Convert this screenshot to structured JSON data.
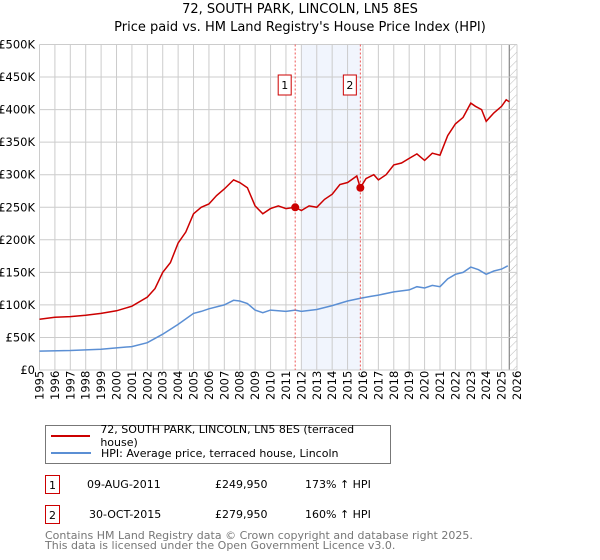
{
  "chart_data": {
    "type": "line",
    "title": "72, SOUTH PARK, LINCOLN, LN5 8ES",
    "subtitle": "Price paid vs. HM Land Registry's House Price Index (HPI)",
    "xlim": [
      1995,
      2026
    ],
    "ylim": [
      0,
      500000
    ],
    "x_ticks": [
      "1995",
      "1996",
      "1997",
      "1998",
      "1999",
      "2000",
      "2001",
      "2002",
      "2003",
      "2004",
      "2005",
      "2006",
      "2007",
      "2008",
      "2009",
      "2010",
      "2011",
      "2012",
      "2013",
      "2014",
      "2015",
      "2016",
      "2017",
      "2018",
      "2019",
      "2020",
      "2021",
      "2022",
      "2023",
      "2024",
      "2025",
      "2026"
    ],
    "y_ticks": [
      {
        "v": 0,
        "label": "£0"
      },
      {
        "v": 50000,
        "label": "£50K"
      },
      {
        "v": 100000,
        "label": "£100K"
      },
      {
        "v": 150000,
        "label": "£150K"
      },
      {
        "v": 200000,
        "label": "£200K"
      },
      {
        "v": 250000,
        "label": "£250K"
      },
      {
        "v": 300000,
        "label": "£300K"
      },
      {
        "v": 350000,
        "label": "£350K"
      },
      {
        "v": 400000,
        "label": "£400K"
      },
      {
        "v": 450000,
        "label": "£450K"
      },
      {
        "v": 500000,
        "label": "£500K"
      }
    ],
    "grid": true,
    "shaded_range": [
      2012.0,
      2015.83
    ],
    "forecast_hatch_from": 2025.5,
    "series": [
      {
        "name": "72, SOUTH PARK, LINCOLN, LN5 8ES (terraced house)",
        "color": "#cc0000",
        "x": [
          1995,
          1996,
          1997,
          1998,
          1999,
          2000,
          2001,
          2002,
          2002.5,
          2003,
          2003.5,
          2004,
          2004.5,
          2005,
          2005.5,
          2006,
          2006.5,
          2007,
          2007.6,
          2008,
          2008.5,
          2009,
          2009.5,
          2010,
          2010.5,
          2011,
          2011.6,
          2012,
          2012.5,
          2013,
          2013.5,
          2014,
          2014.5,
          2015,
          2015.6,
          2015.83,
          2016.2,
          2016.7,
          2017,
          2017.5,
          2018,
          2018.5,
          2019,
          2019.5,
          2020,
          2020.5,
          2021,
          2021.5,
          2022,
          2022.5,
          2023,
          2023.3,
          2023.7,
          2024,
          2024.5,
          2025,
          2025.3,
          2025.5
        ],
        "y": [
          78000,
          81000,
          82000,
          84000,
          87000,
          91000,
          98000,
          112000,
          125000,
          150000,
          165000,
          195000,
          212000,
          240000,
          250000,
          255000,
          268000,
          278000,
          292000,
          288000,
          280000,
          252000,
          240000,
          248000,
          252000,
          248000,
          250000,
          245000,
          252000,
          250000,
          262000,
          270000,
          285000,
          288000,
          298000,
          279950,
          294000,
          300000,
          292000,
          300000,
          315000,
          318000,
          325000,
          332000,
          322000,
          333000,
          330000,
          360000,
          378000,
          388000,
          410000,
          405000,
          400000,
          382000,
          395000,
          405000,
          415000,
          412000
        ]
      },
      {
        "name": "HPI: Average price, terraced house, Lincoln",
        "color": "#5b8fd4",
        "x": [
          1995,
          1997,
          1999,
          2000,
          2001,
          2002,
          2003,
          2004,
          2005,
          2005.5,
          2006,
          2007,
          2007.6,
          2008,
          2008.5,
          2009,
          2009.5,
          2010,
          2011,
          2011.6,
          2012,
          2013,
          2014,
          2015,
          2015.8,
          2016.5,
          2017,
          2018,
          2019,
          2019.5,
          2020,
          2020.5,
          2021,
          2021.5,
          2022,
          2022.5,
          2023,
          2023.5,
          2024,
          2024.5,
          2025,
          2025.4
        ],
        "y": [
          29000,
          30000,
          32000,
          34000,
          36000,
          42000,
          55000,
          70000,
          87000,
          90000,
          94000,
          100000,
          107000,
          106000,
          102000,
          92000,
          88000,
          92000,
          90000,
          92000,
          90000,
          93000,
          99000,
          106000,
          110000,
          113000,
          115000,
          120000,
          123000,
          128000,
          126000,
          130000,
          128000,
          140000,
          147000,
          150000,
          158000,
          154000,
          147000,
          152000,
          155000,
          160000
        ]
      }
    ],
    "annotations": [
      {
        "label": "1",
        "x": 2011.6,
        "y": 249950
      },
      {
        "label": "2",
        "x": 2015.83,
        "y": 279950
      }
    ]
  },
  "legend": {
    "items": [
      "72, SOUTH PARK, LINCOLN, LN5 8ES (terraced house)",
      "HPI: Average price, terraced house, Lincoln"
    ]
  },
  "sales": [
    {
      "num": "1",
      "date": "09-AUG-2011",
      "price": "£249,950",
      "hpi": "173% ↑ HPI"
    },
    {
      "num": "2",
      "date": "30-OCT-2015",
      "price": "£279,950",
      "hpi": "160% ↑ HPI"
    }
  ],
  "footer": [
    "Contains HM Land Registry data © Crown copyright and database right 2025.",
    "This data is licensed under the Open Government Licence v3.0."
  ]
}
